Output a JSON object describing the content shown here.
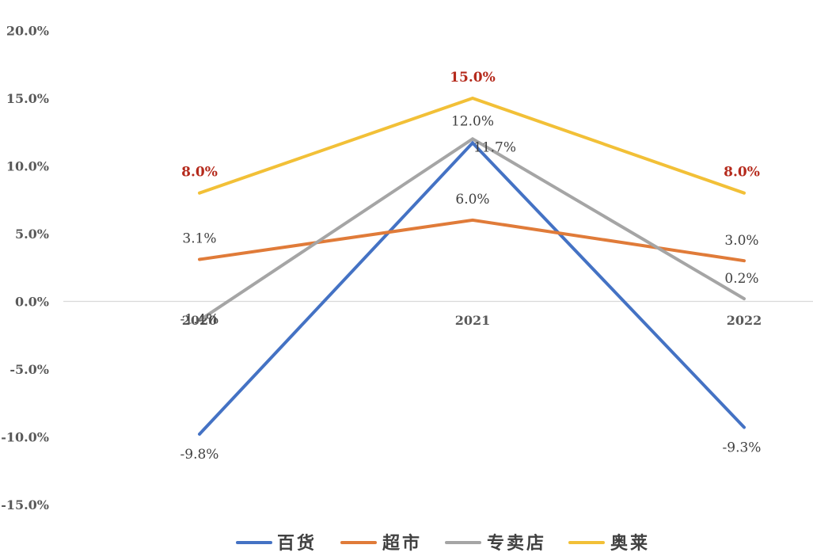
{
  "chart_data": {
    "type": "line",
    "title": "",
    "xlabel": "",
    "ylabel": "",
    "categories": [
      "2020",
      "2021",
      "2022"
    ],
    "ylim": [
      -15,
      20
    ],
    "yticks": [
      20,
      15,
      10,
      5,
      0,
      -5,
      -10,
      -15
    ],
    "ytick_labels": [
      "20.0%",
      "15.0%",
      "10.0%",
      "5.0%",
      "0.0%",
      "-5.0%",
      "-10.0%",
      "-15.0%"
    ],
    "grid": false,
    "legend_position": "bottom",
    "series": [
      {
        "name": "百货",
        "color": "#4472c4",
        "values": [
          -9.8,
          11.7,
          -9.3
        ],
        "labels": [
          "-9.8%",
          "11.7%",
          "-9.3%"
        ],
        "highlight": false
      },
      {
        "name": "超市",
        "color": "#e07b39",
        "values": [
          3.1,
          6.0,
          3.0
        ],
        "labels": [
          "3.1%",
          "6.0%",
          "3.0%"
        ],
        "highlight": false
      },
      {
        "name": "专卖店",
        "color": "#a5a5a5",
        "values": [
          -1.4,
          12.0,
          0.2
        ],
        "labels": [
          "-1.4%",
          "12.0%",
          "0.2%"
        ],
        "highlight": false
      },
      {
        "name": "奥莱",
        "color": "#f2c037",
        "values": [
          8.0,
          15.0,
          8.0
        ],
        "labels": [
          "8.0%",
          "15.0%",
          "8.0%"
        ],
        "highlight": true
      }
    ]
  }
}
